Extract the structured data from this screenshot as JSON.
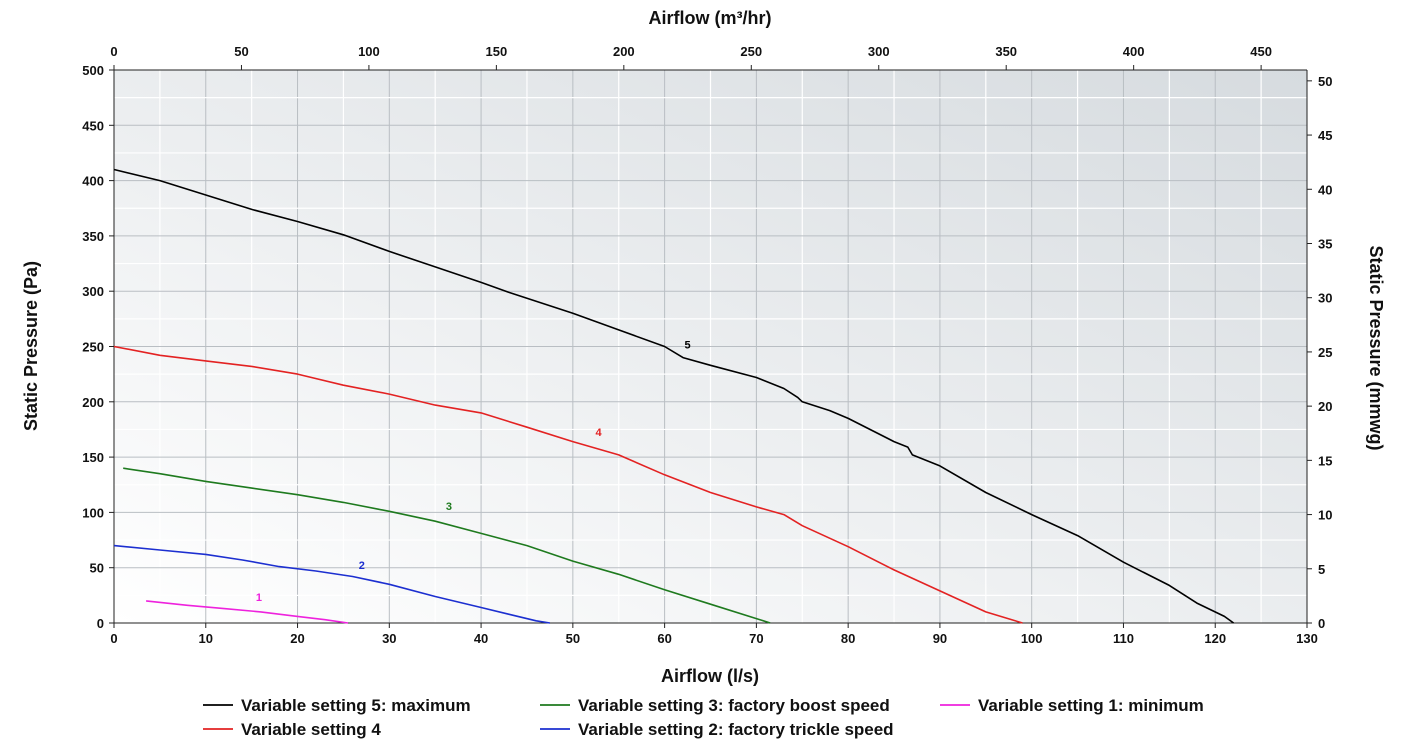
{
  "chart_data": {
    "type": "line",
    "title": "",
    "xlabel": "Airflow (l/s)",
    "ylabel": "Static Pressure (Pa)",
    "x2label": "Airflow (m³/hr)",
    "y2label": "Static Pressure (mmwg)",
    "xlim": [
      0,
      130
    ],
    "ylim": [
      0,
      500
    ],
    "x2lim": [
      0,
      468
    ],
    "y2lim": [
      0,
      51
    ],
    "xticks": [
      0,
      10,
      20,
      30,
      40,
      50,
      60,
      70,
      80,
      90,
      100,
      110,
      120,
      130
    ],
    "yticks": [
      0,
      50,
      100,
      150,
      200,
      250,
      300,
      350,
      400,
      450,
      500
    ],
    "x2ticks": [
      0,
      50,
      100,
      150,
      200,
      250,
      300,
      350,
      400,
      450
    ],
    "y2ticks": [
      0,
      5,
      10,
      15,
      20,
      25,
      30,
      35,
      40,
      45,
      50
    ],
    "grid": true,
    "legend_position": "bottom",
    "series": [
      {
        "name": "Variable setting 5: maximum",
        "label": "5",
        "label_at": [
          62.5,
          248
        ],
        "color": "#000000",
        "x": [
          0,
          5,
          10,
          15,
          20,
          25,
          30,
          35,
          40,
          43,
          50,
          55,
          60,
          62,
          65,
          70,
          73,
          74.5,
          75,
          78,
          80,
          85,
          86.5,
          87,
          90,
          95,
          100,
          105,
          110,
          115,
          118,
          121,
          122
        ],
        "y": [
          410,
          400,
          387,
          374,
          363,
          351,
          336,
          322,
          308,
          299,
          280,
          265,
          250,
          240,
          233,
          222,
          212,
          204,
          200,
          192,
          185,
          164,
          159,
          152,
          142,
          118,
          98,
          79,
          55,
          34,
          18,
          6,
          0
        ]
      },
      {
        "name": "Variable setting 4",
        "label": "4",
        "label_at": [
          52.8,
          169
        ],
        "color": "#e32222",
        "x": [
          0,
          5,
          10,
          15,
          20,
          25,
          30,
          35,
          40,
          45,
          50,
          55,
          60,
          65,
          70,
          73,
          75,
          80,
          85,
          90,
          95,
          99
        ],
        "y": [
          250,
          242,
          237,
          232,
          225,
          215,
          207,
          197,
          190,
          177,
          164,
          152,
          134,
          118,
          105,
          98,
          88,
          69,
          48,
          29,
          10,
          0
        ]
      },
      {
        "name": "Variable setting 3: factory boost speed",
        "label": "3",
        "label_at": [
          36.5,
          102
        ],
        "color": "#1e7a1e",
        "x": [
          1,
          5,
          10,
          15,
          20,
          25,
          30,
          35,
          40,
          45,
          50,
          55,
          60,
          65,
          70,
          71.5
        ],
        "y": [
          140,
          135,
          128,
          122,
          116,
          109,
          101,
          92,
          81,
          70,
          56,
          44,
          30,
          17,
          4,
          0
        ]
      },
      {
        "name": "Variable setting 2: factory trickle speed",
        "label": "2",
        "label_at": [
          27,
          49
        ],
        "color": "#1c2fd0",
        "x": [
          0,
          5,
          10,
          14,
          18,
          22,
          26,
          30,
          35,
          40,
          43,
          46,
          47.5
        ],
        "y": [
          70,
          66,
          62,
          57,
          51,
          47,
          42,
          35,
          24,
          14,
          8,
          2,
          0
        ]
      },
      {
        "name": "Variable setting 1: minimum",
        "label": "1",
        "label_at": [
          15.8,
          20
        ],
        "color": "#ee22dd",
        "x": [
          3.5,
          8,
          12,
          16,
          20,
          23,
          25.5
        ],
        "y": [
          20,
          16,
          13,
          10,
          6,
          3,
          0
        ]
      }
    ]
  }
}
